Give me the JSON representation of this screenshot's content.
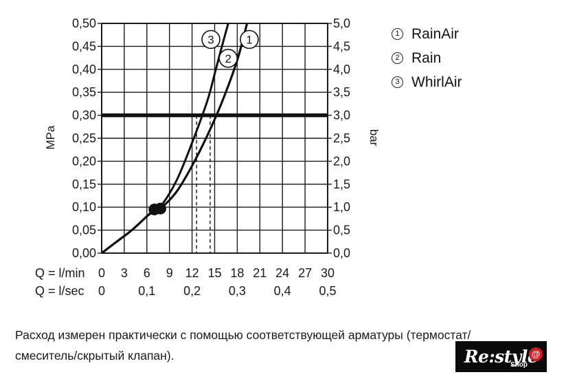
{
  "chart_data": {
    "type": "line",
    "ylabel_left": "MPa",
    "ylabel_right": "bar",
    "x_axis_label_lmin": "Q = l/min",
    "x_axis_label_lsec": "Q = l/sec",
    "x_ticks_lmin": [
      "0",
      "3",
      "6",
      "9",
      "12",
      "15",
      "18",
      "21",
      "24",
      "27",
      "30"
    ],
    "x_ticks_lsec": [
      "0",
      "0,1",
      "0,2",
      "0,3",
      "0,4",
      "0,5"
    ],
    "y_ticks_left": [
      "0,00",
      "0,05",
      "0,10",
      "0,15",
      "0,20",
      "0,25",
      "0,30",
      "0,35",
      "0,40",
      "0,45",
      "0,50"
    ],
    "y_ticks_right": [
      "0,0",
      "0,5",
      "1,0",
      "1,5",
      "2,0",
      "2,5",
      "3,0",
      "3,5",
      "4,0",
      "4,5",
      "5,0"
    ],
    "xlim": [
      0,
      30
    ],
    "ylim": [
      0,
      0.5
    ],
    "grid": true,
    "reference_pressure": 0.3,
    "series": [
      {
        "name": "1",
        "x": [
          0,
          2,
          4,
          6,
          7,
          8,
          10,
          12,
          14,
          16,
          18,
          19.3
        ],
        "y": [
          0,
          0.025,
          0.05,
          0.08,
          0.095,
          0.1,
          0.135,
          0.19,
          0.255,
          0.33,
          0.42,
          0.5
        ]
      },
      {
        "name": "2",
        "x": [
          0,
          2,
          4,
          6,
          7,
          8,
          10,
          12,
          14,
          16,
          18,
          19.3
        ],
        "y": [
          0,
          0.025,
          0.05,
          0.08,
          0.095,
          0.1,
          0.135,
          0.19,
          0.255,
          0.33,
          0.42,
          0.5
        ]
      },
      {
        "name": "3",
        "x": [
          0,
          2,
          4,
          6,
          7,
          8,
          10,
          12,
          14,
          15,
          15.8,
          16.8
        ],
        "y": [
          0,
          0.025,
          0.05,
          0.08,
          0.092,
          0.105,
          0.16,
          0.24,
          0.33,
          0.39,
          0.44,
          0.5
        ]
      }
    ],
    "markers": [
      {
        "x": 7.0,
        "y": 0.095
      },
      {
        "x": 7.8,
        "y": 0.097
      }
    ],
    "dashed_verticals": [
      12.6,
      14.4
    ],
    "curve_labels": [
      {
        "label": "3",
        "x": 14.5,
        "y": 0.465
      },
      {
        "label": "1",
        "x": 19.6,
        "y": 0.465
      },
      {
        "label": "2",
        "x": 16.8,
        "y": 0.424
      }
    ]
  },
  "legend": [
    {
      "num": "1",
      "label": "RainAir"
    },
    {
      "num": "2",
      "label": "Rain"
    },
    {
      "num": "3",
      "label": "WhirlAir"
    }
  ],
  "note": {
    "line1": "Расход измерен практически с помощью соответствующей арматуры (термостат/",
    "line2": "смеситель/скрытый клапан)."
  },
  "logo": {
    "text": "Re:style",
    "sub": "Shop",
    "mark": "@"
  }
}
